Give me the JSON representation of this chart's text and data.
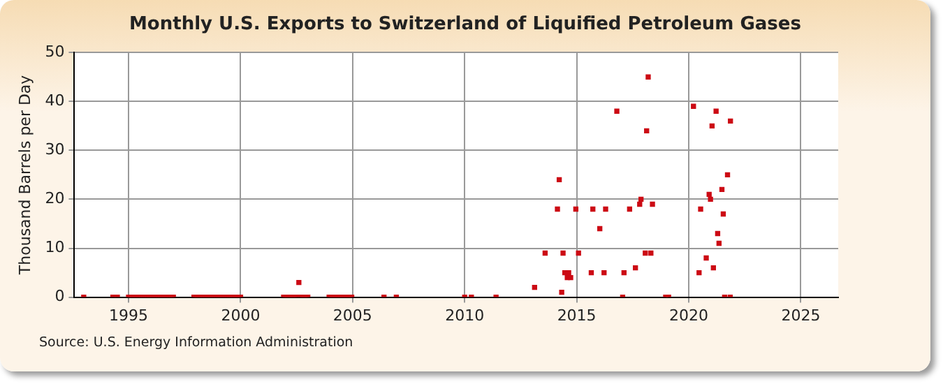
{
  "chart_data": {
    "type": "scatter",
    "title": "Monthly U.S. Exports to Switzerland of Liquified Petroleum Gases",
    "ylabel": "Thousand Barrels per Day",
    "annotations": [
      "Source: U.S. Energy Information Administration"
    ],
    "xlim": [
      1992.58,
      2026.67
    ],
    "xticks": [
      1995,
      2000,
      2005,
      2010,
      2015,
      2020,
      2025
    ],
    "ylim": [
      0,
      50
    ],
    "yticks": [
      0,
      10,
      20,
      30,
      40,
      50
    ],
    "grid": true,
    "legend": false,
    "marker": "square",
    "series": [
      {
        "color": "#cc0a14",
        "x": [
          1993.0,
          1994.3,
          1994.5,
          1995.0,
          1995.08,
          1995.17,
          1995.25,
          1995.33,
          1995.42,
          1995.5,
          1995.58,
          1995.67,
          1995.75,
          1995.83,
          1995.92,
          1996.0,
          1996.08,
          1996.17,
          1996.25,
          1996.33,
          1996.42,
          1996.5,
          1996.58,
          1996.67,
          1996.75,
          1996.83,
          1996.92,
          1997.0,
          1997.92,
          1998.0,
          1998.08,
          1998.17,
          1998.25,
          1998.33,
          1998.42,
          1998.5,
          1998.58,
          1998.67,
          1998.75,
          1998.83,
          1998.92,
          1999.0,
          1999.08,
          1999.17,
          1999.25,
          1999.33,
          1999.42,
          1999.5,
          1999.58,
          1999.67,
          1999.75,
          1999.83,
          1999.92,
          2000.0,
          2001.92,
          2002.0,
          2002.08,
          2002.17,
          2002.25,
          2002.33,
          2002.42,
          2002.5,
          2002.6,
          2002.67,
          2002.75,
          2002.83,
          2002.92,
          2003.0,
          2003.95,
          2004.04,
          2004.13,
          2004.21,
          2004.29,
          2004.38,
          2004.46,
          2004.54,
          2004.63,
          2004.71,
          2004.79,
          2004.88,
          2004.96,
          2006.4,
          2006.95,
          2010.0,
          2010.3,
          2011.4,
          2013.12,
          2013.59,
          2014.14,
          2014.22,
          2014.33,
          2014.39,
          2014.47,
          2014.58,
          2014.64,
          2014.73,
          2014.96,
          2015.08,
          2015.65,
          2015.72,
          2016.03,
          2016.22,
          2016.29,
          2016.79,
          2017.05,
          2017.11,
          2017.36,
          2017.62,
          2017.81,
          2017.87,
          2018.06,
          2018.12,
          2018.19,
          2018.31,
          2018.38,
          2018.97,
          2019.1,
          2020.21,
          2020.46,
          2020.53,
          2020.78,
          2020.91,
          2020.97,
          2021.04,
          2021.1,
          2021.22,
          2021.29,
          2021.35,
          2021.48,
          2021.54,
          2021.6,
          2021.73,
          2021.85,
          2021.86
        ],
        "values": [
          0,
          0,
          0,
          0,
          0,
          0,
          0,
          0,
          0,
          0,
          0,
          0,
          0,
          0,
          0,
          0,
          0,
          0,
          0,
          0,
          0,
          0,
          0,
          0,
          0,
          0,
          0,
          0,
          0,
          0,
          0,
          0,
          0,
          0,
          0,
          0,
          0,
          0,
          0,
          0,
          0,
          0,
          0,
          0,
          0,
          0,
          0,
          0,
          0,
          0,
          0,
          0,
          0,
          0,
          0,
          0,
          0,
          0,
          0,
          0,
          0,
          0,
          3,
          0,
          0,
          0,
          0,
          0,
          0,
          0,
          0,
          0,
          0,
          0,
          0,
          0,
          0,
          0,
          0,
          0,
          0,
          0,
          0,
          0,
          0,
          0,
          2,
          9,
          18,
          24,
          1,
          9,
          5,
          4,
          5,
          4,
          18,
          9,
          5,
          18,
          14,
          5,
          18,
          38,
          0,
          5,
          18,
          6,
          19,
          20,
          9,
          34,
          45,
          9,
          19,
          0,
          0,
          39,
          5,
          18,
          8,
          21,
          20,
          35,
          6,
          38,
          13,
          11,
          22,
          17,
          0,
          25,
          0,
          36
        ]
      }
    ]
  }
}
